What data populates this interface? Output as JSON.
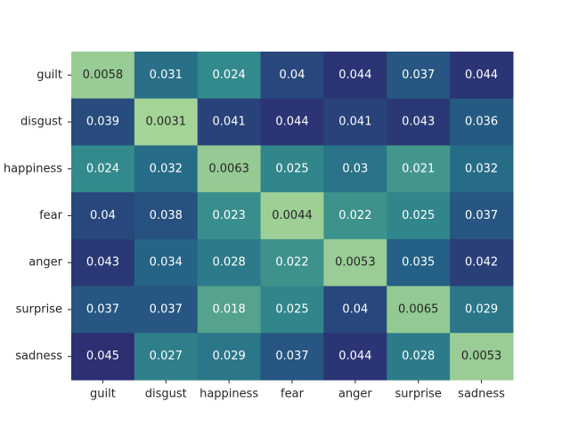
{
  "chart_data": {
    "type": "heatmap",
    "rows": [
      "guilt",
      "disgust",
      "happiness",
      "fear",
      "anger",
      "surprise",
      "sadness"
    ],
    "columns": [
      "guilt",
      "disgust",
      "happiness",
      "fear",
      "anger",
      "surprise",
      "sadness"
    ],
    "values": [
      [
        0.0058,
        0.031,
        0.024,
        0.04,
        0.044,
        0.037,
        0.044
      ],
      [
        0.039,
        0.0031,
        0.041,
        0.044,
        0.041,
        0.043,
        0.036
      ],
      [
        0.024,
        0.032,
        0.0063,
        0.025,
        0.03,
        0.021,
        0.032
      ],
      [
        0.04,
        0.038,
        0.023,
        0.0044,
        0.022,
        0.025,
        0.037
      ],
      [
        0.043,
        0.034,
        0.028,
        0.022,
        0.0053,
        0.035,
        0.042
      ],
      [
        0.037,
        0.037,
        0.018,
        0.025,
        0.04,
        0.0065,
        0.029
      ],
      [
        0.045,
        0.027,
        0.029,
        0.037,
        0.044,
        0.028,
        0.0053
      ]
    ],
    "labels": [
      [
        "0.0058",
        "0.031",
        "0.024",
        "0.04",
        "0.044",
        "0.037",
        "0.044"
      ],
      [
        "0.039",
        "0.0031",
        "0.041",
        "0.044",
        "0.041",
        "0.043",
        "0.036"
      ],
      [
        "0.024",
        "0.032",
        "0.0063",
        "0.025",
        "0.03",
        "0.021",
        "0.032"
      ],
      [
        "0.04",
        "0.038",
        "0.023",
        "0.0044",
        "0.022",
        "0.025",
        "0.037"
      ],
      [
        "0.043",
        "0.034",
        "0.028",
        "0.022",
        "0.0053",
        "0.035",
        "0.042"
      ],
      [
        "0.037",
        "0.037",
        "0.018",
        "0.025",
        "0.04",
        "0.0065",
        "0.029"
      ],
      [
        "0.045",
        "0.027",
        "0.029",
        "0.037",
        "0.044",
        "0.028",
        "0.0053"
      ]
    ],
    "colormap": "crest",
    "colorbar": false,
    "grid": false,
    "title": "",
    "xlabel": "",
    "ylabel": ""
  },
  "colors": {
    "low": "#a5d497",
    "mid": "#2f8a8c",
    "high": "#2c2f72",
    "text_light": "#ffffff",
    "text_dark": "#262626"
  }
}
